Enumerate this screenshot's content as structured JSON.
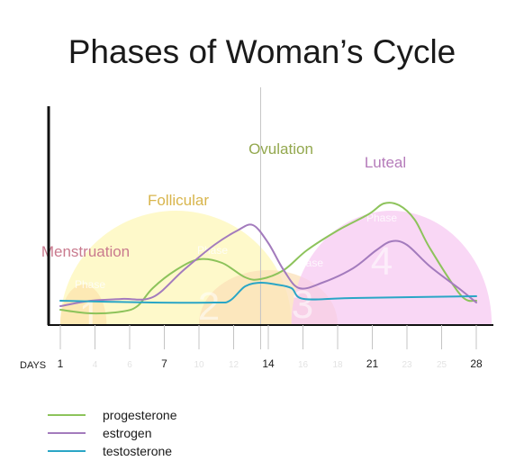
{
  "chart_data": {
    "type": "line",
    "title": "Phases of Woman’s Cycle",
    "xlabel": "DAYS",
    "ylabel": "",
    "xlim": [
      1,
      28
    ],
    "ylim": [
      0,
      100
    ],
    "x_ticks": [
      {
        "label": "1",
        "faint": false
      },
      {
        "label": "4",
        "faint": true
      },
      {
        "label": "6",
        "faint": true
      },
      {
        "label": "7",
        "faint": false
      },
      {
        "label": "10",
        "faint": true
      },
      {
        "label": "12",
        "faint": true
      },
      {
        "label": "14",
        "faint": false
      },
      {
        "label": "16",
        "faint": true
      },
      {
        "label": "18",
        "faint": true
      },
      {
        "label": "21",
        "faint": false
      },
      {
        "label": "23",
        "faint": true
      },
      {
        "label": "25",
        "faint": true
      },
      {
        "label": "28",
        "faint": false
      }
    ],
    "ovulation_marker_day": 14,
    "phases": [
      {
        "number": "1",
        "name": "Menstruation",
        "word": "Phase",
        "label_color": "#c97a8e",
        "fill_color": "#f7a98b",
        "start_day": 1,
        "end_day": 4,
        "height": 22
      },
      {
        "number": "2",
        "name": "Follicular",
        "word": "Phase",
        "label_color": "#d8b54c",
        "fill_color": "#fdf7b8",
        "start_day": 1,
        "end_day": 16,
        "height": 63
      },
      {
        "number": "3",
        "name": "Ovulation",
        "word": "Phase",
        "label_color": "#93a84e",
        "fill_color": "#fbe0b8",
        "start_day": 10,
        "end_day": 19,
        "height": 30
      },
      {
        "number": "4",
        "name": "Luteal",
        "word": "Phase",
        "label_color": "#b57bba",
        "fill_color": "#f7c9f2",
        "start_day": 16,
        "end_day": 29,
        "height": 63
      }
    ],
    "series": [
      {
        "name": "progesterone",
        "color": "#8dc35b",
        "points": [
          [
            1,
            8
          ],
          [
            3,
            6
          ],
          [
            5,
            7
          ],
          [
            6,
            10
          ],
          [
            7,
            20
          ],
          [
            8.5,
            30
          ],
          [
            10,
            36
          ],
          [
            11.5,
            34
          ],
          [
            13,
            26
          ],
          [
            14,
            25
          ],
          [
            15.5,
            30
          ],
          [
            17,
            41
          ],
          [
            19,
            52
          ],
          [
            21,
            61
          ],
          [
            22,
            67
          ],
          [
            23,
            66
          ],
          [
            24,
            58
          ],
          [
            25,
            42
          ],
          [
            27,
            16
          ],
          [
            28,
            13
          ]
        ]
      },
      {
        "name": "estrogen",
        "color": "#a37bbd",
        "points": [
          [
            1,
            10
          ],
          [
            3,
            13
          ],
          [
            5,
            14
          ],
          [
            7,
            15
          ],
          [
            9,
            30
          ],
          [
            11,
            44
          ],
          [
            12.5,
            52
          ],
          [
            13.5,
            55
          ],
          [
            14.5,
            45
          ],
          [
            15.5,
            30
          ],
          [
            16.5,
            20
          ],
          [
            18,
            23
          ],
          [
            20,
            31
          ],
          [
            21.5,
            41
          ],
          [
            22.5,
            46
          ],
          [
            23.5,
            44
          ],
          [
            25,
            32
          ],
          [
            27,
            19
          ],
          [
            28,
            12
          ]
        ]
      },
      {
        "name": "testosterone",
        "color": "#2aa6c6",
        "points": [
          [
            1,
            13
          ],
          [
            7,
            12
          ],
          [
            11,
            12
          ],
          [
            12,
            13
          ],
          [
            13,
            21
          ],
          [
            14,
            23
          ],
          [
            15,
            22
          ],
          [
            16,
            20
          ],
          [
            16.8,
            14
          ],
          [
            20,
            14.5
          ],
          [
            28,
            15.5
          ]
        ]
      }
    ]
  }
}
